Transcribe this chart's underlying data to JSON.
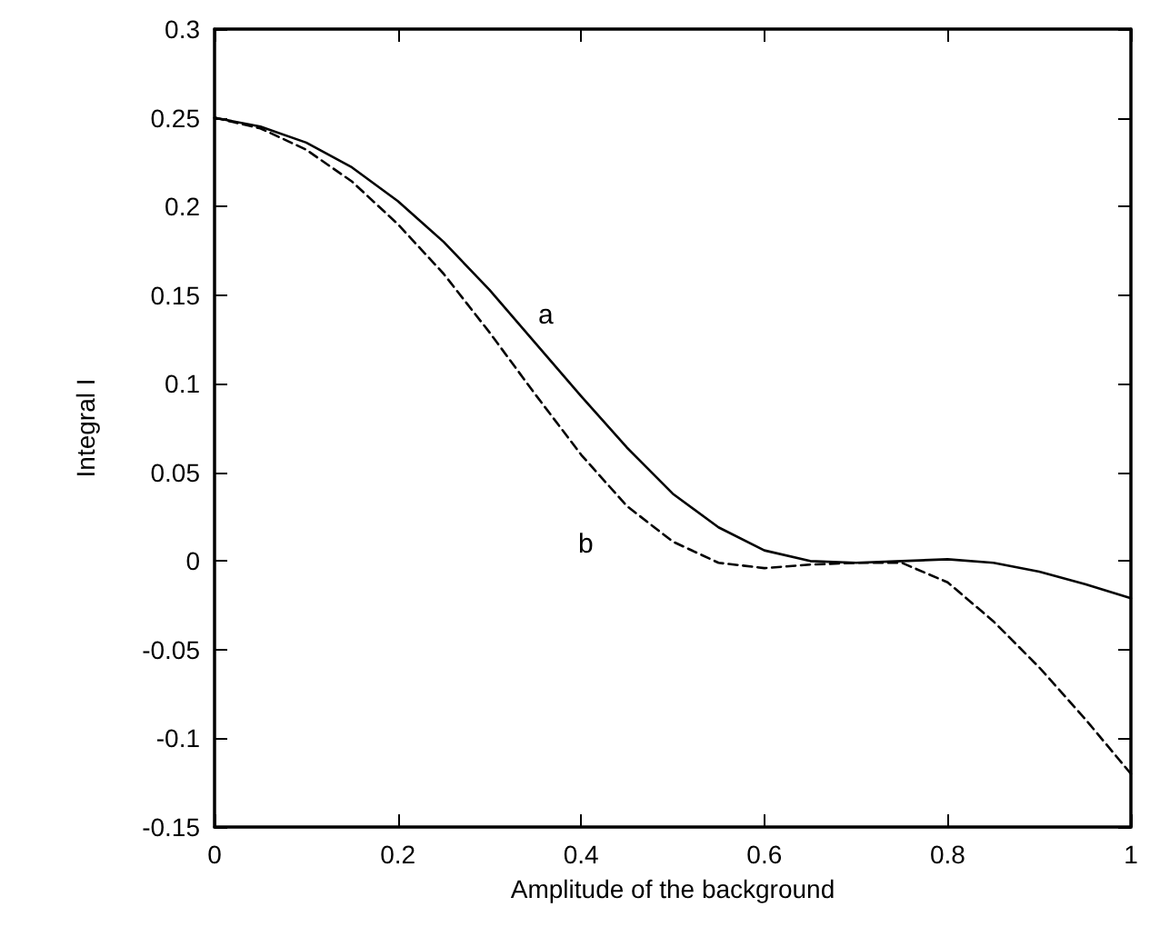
{
  "chart_data": {
    "type": "line",
    "xlabel": "Amplitude of the background",
    "ylabel": "Integral I",
    "xlim": [
      0,
      1
    ],
    "xticks": [
      0,
      0.2,
      0.4,
      0.6,
      0.8,
      1
    ],
    "ylim": [
      -0.15,
      0.3
    ],
    "yticks": [
      -0.15,
      -0.1,
      -0.05,
      0,
      0.05,
      0.1,
      0.15,
      0.2,
      0.25,
      0.3
    ],
    "grid": false,
    "marker": "none",
    "x": [
      0,
      0.05,
      0.1,
      0.15,
      0.2,
      0.25,
      0.3,
      0.35,
      0.4,
      0.45,
      0.5,
      0.55,
      0.6,
      0.65,
      0.7,
      0.75,
      0.8,
      0.85,
      0.9,
      0.95,
      1
    ],
    "series": [
      {
        "color": "#000000",
        "line_style": "solid",
        "values": [
          0.25,
          0.245,
          0.236,
          0.222,
          0.203,
          0.18,
          0.153,
          0.123,
          0.093,
          0.064,
          0.038,
          0.019,
          0.006,
          0.0,
          -0.001,
          0.0,
          0.001,
          -0.001,
          -0.006,
          -0.013,
          -0.021
        ]
      },
      {
        "color": "#000000",
        "line_style": "dashed",
        "values": [
          0.25,
          0.244,
          0.232,
          0.214,
          0.19,
          0.162,
          0.129,
          0.094,
          0.06,
          0.031,
          0.011,
          -0.001,
          -0.004,
          -0.002,
          -0.001,
          -0.001,
          -0.012,
          -0.034,
          -0.06,
          -0.089,
          -0.12
        ]
      }
    ],
    "annotations": [
      "a",
      "b"
    ]
  }
}
